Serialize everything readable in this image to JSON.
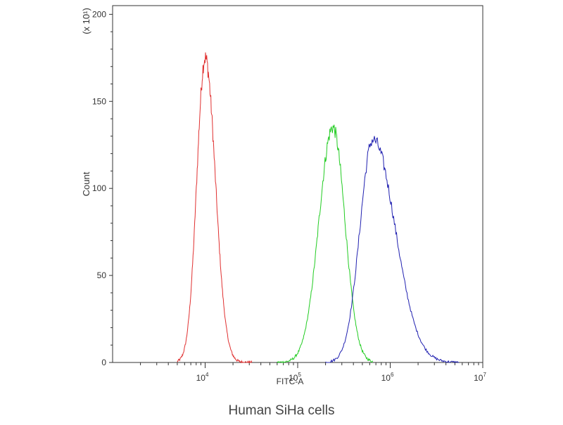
{
  "chart_data": {
    "type": "line",
    "xlabel": "FITC-A",
    "ylabel": "Count",
    "y_multiplier_label": "(x 10¹)",
    "caption": "Human SiHa cells",
    "x_scale": "log",
    "xlim": [
      1000,
      10000000
    ],
    "ylim": [
      0,
      205
    ],
    "x_ticks": [
      {
        "value": 10000,
        "base": "10",
        "exp": "4"
      },
      {
        "value": 100000,
        "base": "10",
        "exp": "5"
      },
      {
        "value": 1000000,
        "base": "10",
        "exp": "6"
      },
      {
        "value": 10000000,
        "base": "10",
        "exp": "7"
      }
    ],
    "y_ticks": [
      0,
      50,
      100,
      150,
      200
    ],
    "grid": false,
    "series": [
      {
        "color": "#e03030",
        "peak_x": 10000,
        "peak_y": 175,
        "sigma_left": 0.09,
        "sigma_right": 0.11,
        "x_range": [
          5000,
          32000
        ]
      },
      {
        "color": "#22cc22",
        "peak_x": 240000,
        "peak_y": 135,
        "sigma_left": 0.15,
        "sigma_right": 0.13,
        "x_range": [
          60000,
          650000
        ]
      },
      {
        "color": "#2020b0",
        "peak_x": 650000,
        "peak_y": 128,
        "sigma_left": 0.14,
        "sigma_right": 0.24,
        "x_range": [
          200000,
          5500000
        ]
      }
    ]
  }
}
